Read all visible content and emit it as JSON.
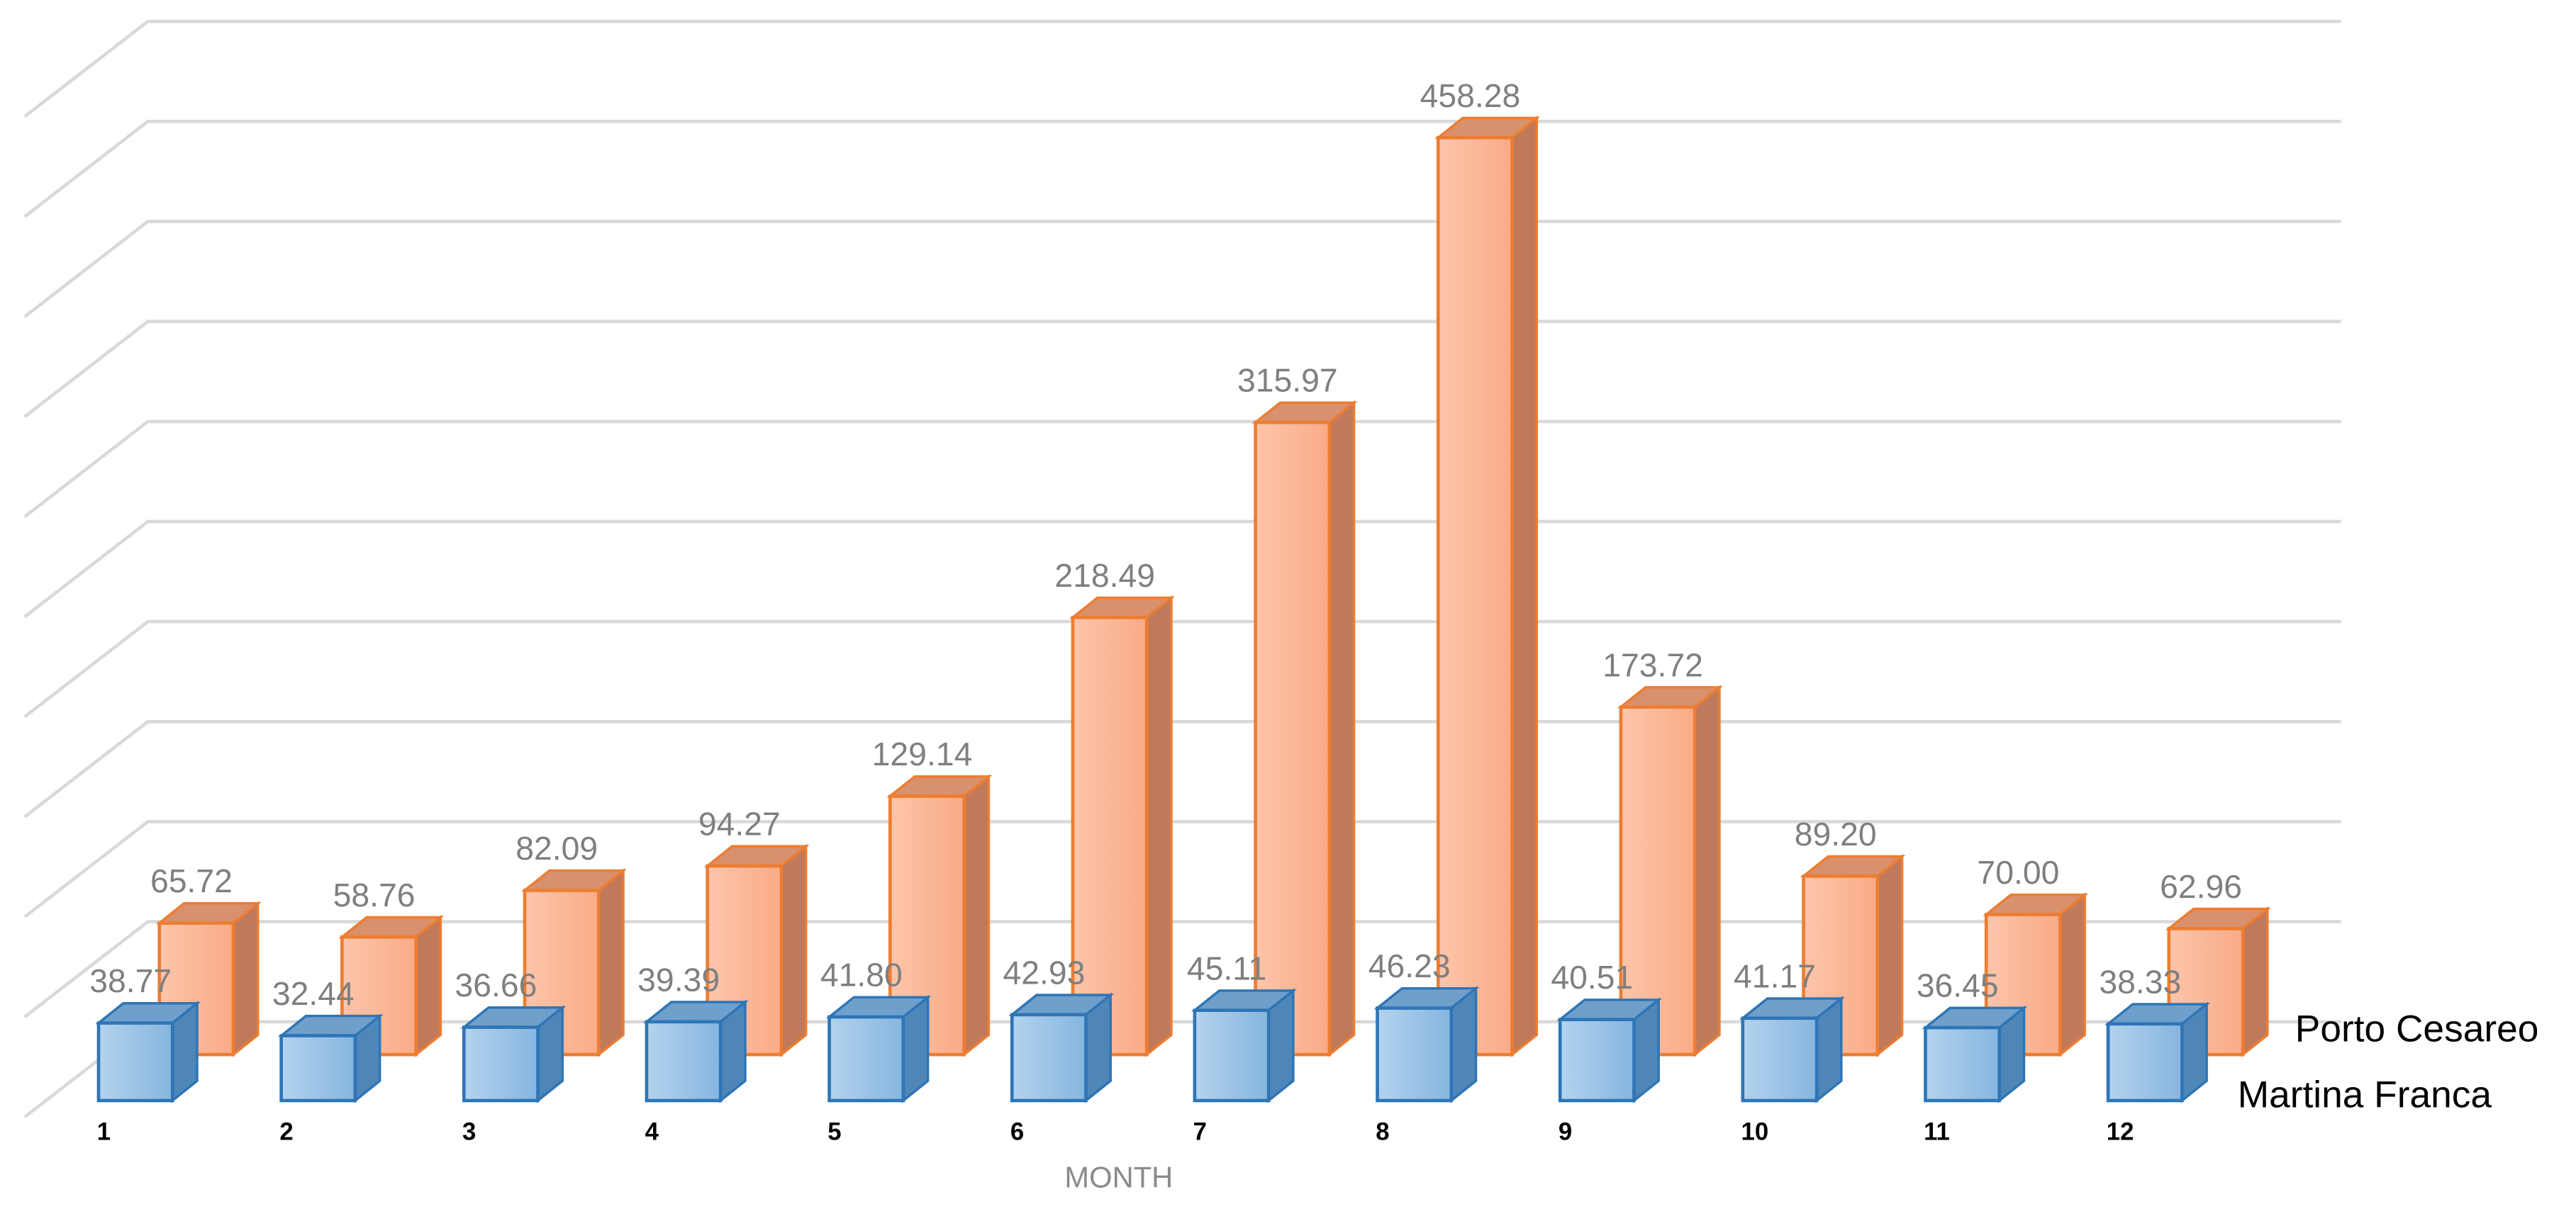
{
  "chart_data": {
    "type": "bar3d",
    "x_label": "MONTH",
    "categories": [
      "1",
      "2",
      "3",
      "4",
      "5",
      "6",
      "7",
      "8",
      "9",
      "10",
      "11",
      "12"
    ],
    "series": [
      {
        "name": "Martina Franca",
        "color": "#9dc3e6",
        "values": [
          38.77,
          32.44,
          36.66,
          39.39,
          41.8,
          42.93,
          45.11,
          46.23,
          40.51,
          41.17,
          36.45,
          38.33
        ],
        "value_labels": [
          "38.77",
          "32.44",
          "36.66",
          "39.39",
          "41.80",
          "42.93",
          "45.11",
          "46.23",
          "40.51",
          "41.17",
          "36.45",
          "38.33"
        ]
      },
      {
        "name": "Porto Cesareo",
        "color": "#fbb99b",
        "values": [
          65.72,
          58.76,
          82.09,
          94.27,
          129.14,
          218.49,
          315.97,
          458.28,
          173.72,
          89.2,
          70,
          62.96
        ],
        "value_labels": [
          "65.72",
          "58.76",
          "82.09",
          "94.27",
          "129.14",
          "218.49",
          "315.97",
          "458.28",
          "173.72",
          "89.20",
          "70.00",
          "62.96"
        ]
      }
    ],
    "ylim": [
      0,
      500
    ],
    "yticks": [
      0,
      50,
      100,
      150,
      200,
      250,
      300,
      350,
      400,
      450,
      500
    ],
    "grid": true
  }
}
